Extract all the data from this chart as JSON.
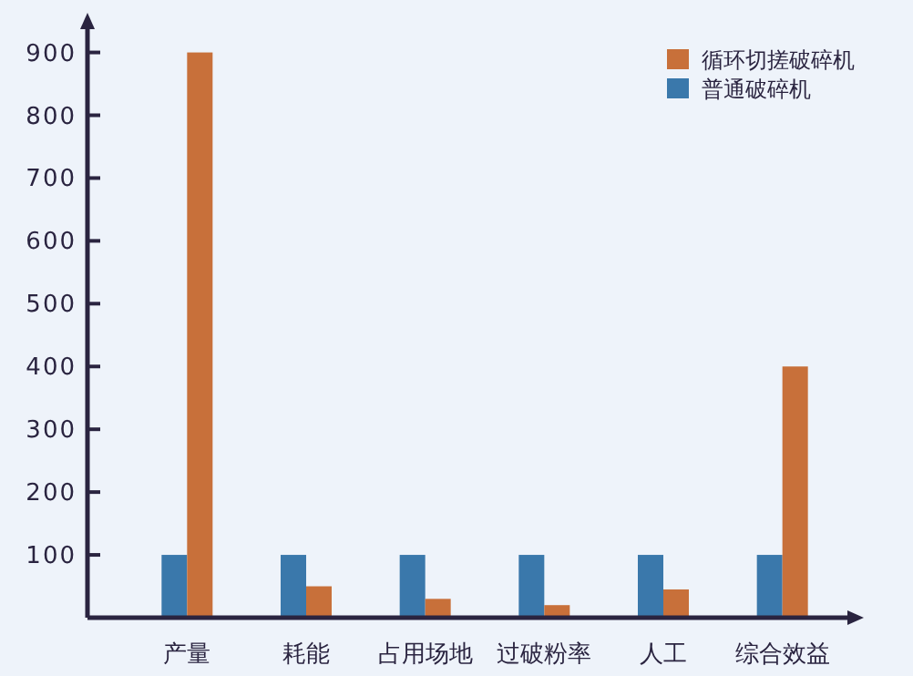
{
  "chart_data": {
    "type": "bar",
    "categories": [
      "产量",
      "耗能",
      "占用场地",
      "过破粉率",
      "人工",
      "综合效益"
    ],
    "series": [
      {
        "name": "普通破碎机",
        "color": "#3a78ab",
        "values": [
          100,
          100,
          100,
          100,
          100,
          100
        ]
      },
      {
        "name": "循环切搓破碎机",
        "color": "#c8703a",
        "values": [
          900,
          50,
          30,
          20,
          45,
          400
        ]
      }
    ],
    "ylim": [
      0,
      940
    ],
    "yticks": [
      100,
      200,
      300,
      400,
      500,
      600,
      700,
      800,
      900
    ],
    "grid": false,
    "legend": "top right"
  }
}
